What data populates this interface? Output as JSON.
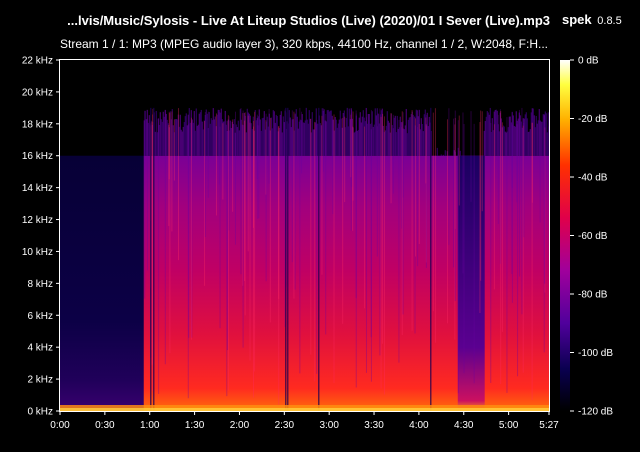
{
  "window": {
    "file_title": "...lvis/Music/Sylosis - Live At Liteup Studios (Live) (2020)/01 I Sever (Live).mp3",
    "app_name": "spek",
    "app_version": "0.8.5",
    "stream_info": "Stream 1 / 1: MP3 (MPEG audio layer 3), 320 kbps, 44100 Hz, channel 1 / 2, W:2048, F:H..."
  },
  "spectrogram": {
    "freq_ticks": [
      "0 kHz",
      "2 kHz",
      "4 kHz",
      "6 kHz",
      "8 kHz",
      "10 kHz",
      "12 kHz",
      "14 kHz",
      "16 kHz",
      "18 kHz",
      "20 kHz",
      "22 kHz"
    ],
    "freq_max_khz": 22,
    "time_ticks": [
      "0:00",
      "0:30",
      "1:00",
      "1:30",
      "2:00",
      "2:30",
      "3:00",
      "3:30",
      "4:00",
      "4:30",
      "5:00",
      "5:27"
    ],
    "duration_seconds": 327,
    "lowpass_khz_intro": 16,
    "lowpass_khz_main": 19,
    "db_ticks": [
      "0 dB",
      "-20 dB",
      "-40 dB",
      "-60 dB",
      "-80 dB",
      "-100 dB",
      "-120 dB"
    ],
    "db_range": [
      -120,
      0
    ],
    "palette": [
      "#ffffff",
      "#ffff40",
      "#ffb000",
      "#ff3000",
      "#e0004a",
      "#a0009c",
      "#50009c",
      "#0a0050",
      "#000000"
    ]
  }
}
